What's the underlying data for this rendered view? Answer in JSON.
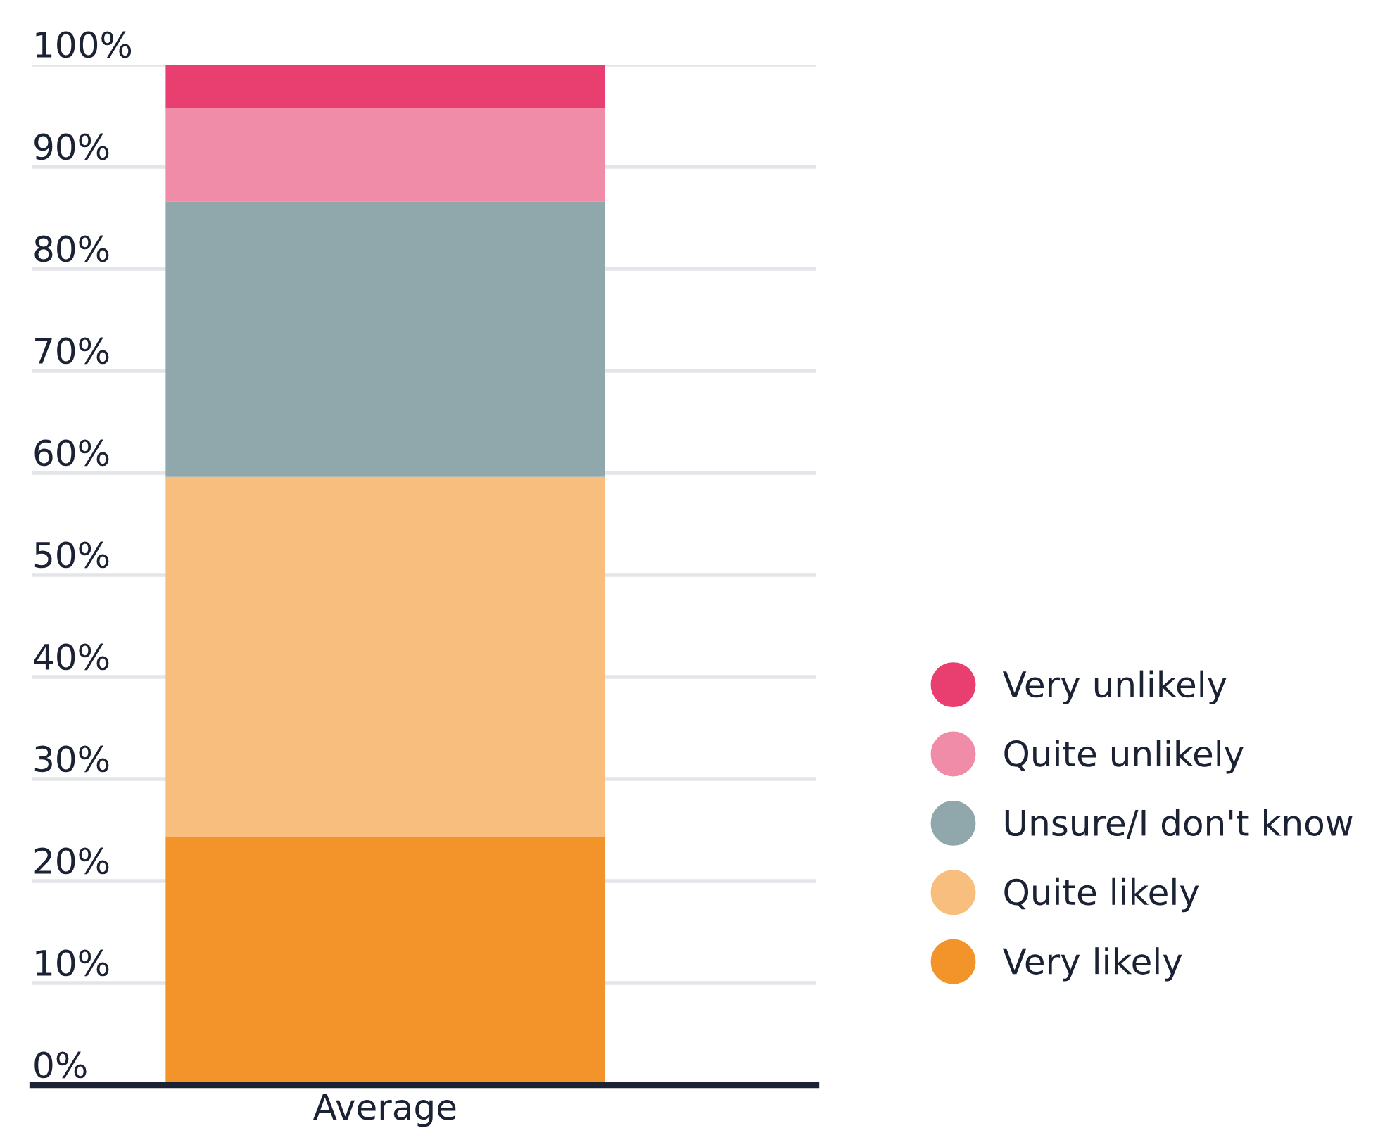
{
  "chart_data": {
    "type": "bar",
    "stacked": true,
    "categories": [
      "Average"
    ],
    "series": [
      {
        "name": "Very likely",
        "color": "#f3942a",
        "values": [
          24.3
        ]
      },
      {
        "name": "Quite likely",
        "color": "#f7be7e",
        "values": [
          35.3
        ]
      },
      {
        "name": "Unsure/I don't know",
        "color": "#90a7ab",
        "values": [
          27.0
        ]
      },
      {
        "name": "Quite unlikely",
        "color": "#f08ba8",
        "values": [
          9.1
        ]
      },
      {
        "name": "Very unlikely",
        "color": "#e93f70",
        "values": [
          4.3
        ]
      }
    ],
    "ylim": [
      0,
      100
    ],
    "yticks": [
      {
        "value": 0,
        "label": "0%"
      },
      {
        "value": 10,
        "label": "10%"
      },
      {
        "value": 20,
        "label": "20%"
      },
      {
        "value": 30,
        "label": "30%"
      },
      {
        "value": 40,
        "label": "40%"
      },
      {
        "value": 50,
        "label": "50%"
      },
      {
        "value": 60,
        "label": "60%"
      },
      {
        "value": 70,
        "label": "70%"
      },
      {
        "value": 80,
        "label": "80%"
      },
      {
        "value": 90,
        "label": "90%"
      },
      {
        "value": 100,
        "label": "100%"
      }
    ],
    "grid": "y",
    "legend": "right",
    "marker": "circle"
  }
}
